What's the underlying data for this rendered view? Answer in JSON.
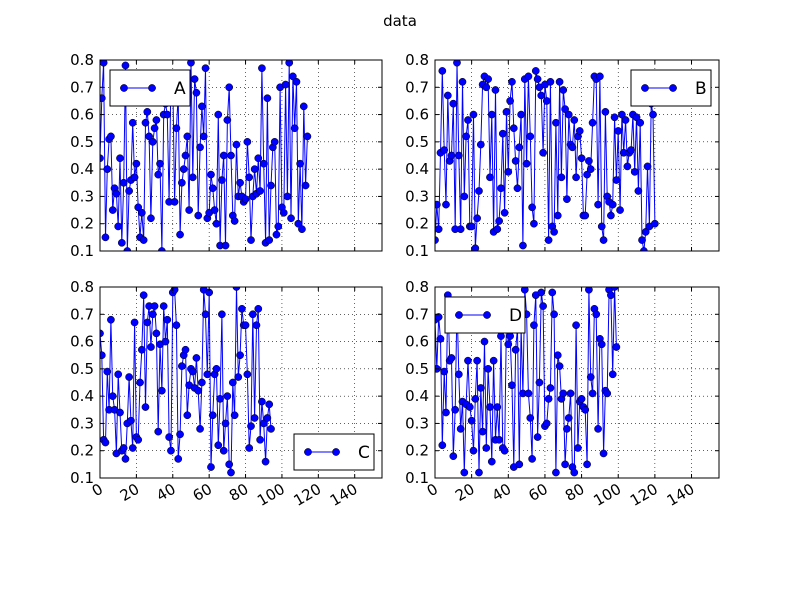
{
  "figure": {
    "title": "data"
  },
  "colors": {
    "series": "#0000ff",
    "grid": "#000000",
    "axes": "#000000",
    "background": "#ffffff"
  },
  "chart_data": [
    {
      "type": "line",
      "title": "",
      "series": [
        {
          "name": "A",
          "marker": "circle"
        }
      ],
      "legend": "top-left",
      "xlim": [
        0,
        155
      ],
      "ylim": [
        0.1,
        0.8
      ],
      "xticks": [],
      "yticks": [
        "0.1",
        "0.2",
        "0.3",
        "0.4",
        "0.5",
        "0.6",
        "0.7",
        "0.8"
      ],
      "grid": true,
      "y": [
        0.44,
        0.66,
        0.79,
        0.15,
        0.4,
        0.51,
        0.52,
        0.25,
        0.33,
        0.31,
        0.19,
        0.44,
        0.13,
        0.35,
        0.78,
        0.1,
        0.32,
        0.36,
        0.57,
        0.37,
        0.42,
        0.26,
        0.15,
        0.24,
        0.14,
        0.57,
        0.61,
        0.52,
        0.22,
        0.5,
        0.55,
        0.58,
        0.38,
        0.42,
        0.1,
        0.6,
        0.64,
        0.6,
        0.28,
        0.75,
        0.72,
        0.28,
        0.55,
        0.67,
        0.16,
        0.35,
        0.4,
        0.45,
        0.52,
        0.25,
        0.79,
        0.37,
        0.73,
        0.68,
        0.23,
        0.48,
        0.63,
        0.52,
        0.77,
        0.22,
        0.24,
        0.38,
        0.33,
        0.25,
        0.2,
        0.6,
        0.12,
        0.36,
        0.45,
        0.12,
        0.58,
        0.7,
        0.45,
        0.23,
        0.21,
        0.49,
        0.3,
        0.35,
        0.3,
        0.28,
        0.29,
        0.5,
        0.37,
        0.14,
        0.3,
        0.4,
        0.31,
        0.44,
        0.32,
        0.77,
        0.42,
        0.13,
        0.66,
        0.14,
        0.34,
        0.48,
        0.5,
        0.16,
        0.19,
        0.7,
        0.26,
        0.24,
        0.71,
        0.3,
        0.79,
        0.22,
        0.74,
        0.55,
        0.72,
        0.2,
        0.42,
        0.18,
        0.63,
        0.34,
        0.52
      ]
    },
    {
      "type": "line",
      "title": "",
      "series": [
        {
          "name": "B",
          "marker": "circle"
        }
      ],
      "legend": "top-right",
      "xlim": [
        0,
        155
      ],
      "ylim": [
        0.1,
        0.8
      ],
      "xticks": [],
      "yticks": [
        "0.1",
        "0.2",
        "0.3",
        "0.4",
        "0.5",
        "0.6",
        "0.7",
        "0.8"
      ],
      "grid": true,
      "y": [
        0.14,
        0.27,
        0.18,
        0.46,
        0.76,
        0.47,
        0.27,
        0.67,
        0.43,
        0.45,
        0.64,
        0.18,
        0.79,
        0.45,
        0.18,
        0.72,
        0.3,
        0.52,
        0.58,
        0.19,
        0.19,
        0.6,
        0.11,
        0.22,
        0.32,
        0.49,
        0.71,
        0.74,
        0.7,
        0.73,
        0.37,
        0.6,
        0.17,
        0.69,
        0.18,
        0.21,
        0.33,
        0.53,
        0.24,
        0.61,
        0.39,
        0.65,
        0.72,
        0.55,
        0.43,
        0.33,
        0.48,
        0.6,
        0.12,
        0.73,
        0.42,
        0.74,
        0.52,
        0.26,
        0.2,
        0.76,
        0.73,
        0.7,
        0.67,
        0.46,
        0.71,
        0.65,
        0.14,
        0.72,
        0.19,
        0.17,
        0.57,
        0.23,
        0.72,
        0.37,
        0.69,
        0.62,
        0.29,
        0.6,
        0.49,
        0.48,
        0.58,
        0.37,
        0.52,
        0.54,
        0.44,
        0.23,
        0.23,
        0.38,
        0.43,
        0.4,
        0.57,
        0.74,
        0.73,
        0.27,
        0.74,
        0.19,
        0.14,
        0.61,
        0.3,
        0.28,
        0.23,
        0.27,
        0.59,
        0.36,
        0.54,
        0.25,
        0.6,
        0.46,
        0.58,
        0.41,
        0.46,
        0.47,
        0.6,
        0.39,
        0.59,
        0.32,
        0.57,
        0.14,
        0.1,
        0.17,
        0.41,
        0.19,
        0.64,
        0.6,
        0.2
      ]
    },
    {
      "type": "line",
      "title": "",
      "series": [
        {
          "name": "C",
          "marker": "circle"
        }
      ],
      "legend": "bottom-right",
      "xlim": [
        0,
        155
      ],
      "ylim": [
        0.1,
        0.8
      ],
      "xticks": [
        "0",
        "20",
        "40",
        "60",
        "80",
        "100",
        "120",
        "140"
      ],
      "yticks": [
        "0.1",
        "0.2",
        "0.3",
        "0.4",
        "0.5",
        "0.6",
        "0.7",
        "0.8"
      ],
      "grid": true,
      "y": [
        0.63,
        0.55,
        0.24,
        0.23,
        0.49,
        0.35,
        0.68,
        0.4,
        0.35,
        0.19,
        0.48,
        0.34,
        0.2,
        0.21,
        0.17,
        0.3,
        0.47,
        0.31,
        0.21,
        0.67,
        0.25,
        0.24,
        0.45,
        0.57,
        0.77,
        0.36,
        0.67,
        0.73,
        0.58,
        0.7,
        0.73,
        0.63,
        0.27,
        0.59,
        0.42,
        0.73,
        0.6,
        0.68,
        0.25,
        0.2,
        0.78,
        0.79,
        0.66,
        0.17,
        0.26,
        0.51,
        0.55,
        0.57,
        0.33,
        0.44,
        0.5,
        0.49,
        0.43,
        0.54,
        0.42,
        0.28,
        0.45,
        0.79,
        0.7,
        0.48,
        0.78,
        0.14,
        0.33,
        0.48,
        0.5,
        0.22,
        0.39,
        0.7,
        0.2,
        0.3,
        0.4,
        0.15,
        0.12,
        0.45,
        0.33,
        0.8,
        0.47,
        0.55,
        0.72,
        0.66,
        0.66,
        0.48,
        0.21,
        0.29,
        0.7,
        0.32,
        0.66,
        0.72,
        0.24,
        0.38,
        0.3,
        0.16,
        0.32,
        0.37,
        0.28
      ]
    },
    {
      "type": "line",
      "title": "",
      "series": [
        {
          "name": "D",
          "marker": "circle"
        }
      ],
      "legend": "top-left",
      "xlim": [
        0,
        155
      ],
      "ylim": [
        0.1,
        0.8
      ],
      "xticks": [
        "0",
        "20",
        "40",
        "60",
        "80",
        "100",
        "120",
        "140"
      ],
      "yticks": [
        "0.1",
        "0.2",
        "0.3",
        "0.4",
        "0.5",
        "0.6",
        "0.7",
        "0.8"
      ],
      "grid": true,
      "y": [
        0.68,
        0.5,
        0.69,
        0.61,
        0.22,
        0.49,
        0.34,
        0.77,
        0.53,
        0.54,
        0.18,
        0.35,
        0.74,
        0.48,
        0.28,
        0.38,
        0.12,
        0.37,
        0.53,
        0.36,
        0.31,
        0.2,
        0.39,
        0.53,
        0.12,
        0.43,
        0.27,
        0.6,
        0.21,
        0.5,
        0.36,
        0.16,
        0.53,
        0.24,
        0.36,
        0.24,
        0.62,
        0.21,
        0.2,
        0.69,
        0.59,
        0.62,
        0.44,
        0.14,
        0.57,
        0.65,
        0.15,
        0.65,
        0.41,
        0.79,
        0.7,
        0.41,
        0.32,
        0.17,
        0.66,
        0.77,
        0.25,
        0.45,
        0.78,
        0.73,
        0.29,
        0.3,
        0.39,
        0.43,
        0.78,
        0.7,
        0.12,
        0.55,
        0.51,
        0.39,
        0.41,
        0.15,
        0.28,
        0.32,
        0.41,
        0.14,
        0.12,
        0.66,
        0.21,
        0.38,
        0.39,
        0.36,
        0.35,
        0.15,
        0.79,
        0.47,
        0.41,
        0.72,
        0.7,
        0.28,
        0.61,
        0.59,
        0.19,
        0.42,
        0.41,
        0.79,
        0.77,
        0.48,
        0.8,
        0.58
      ]
    }
  ]
}
